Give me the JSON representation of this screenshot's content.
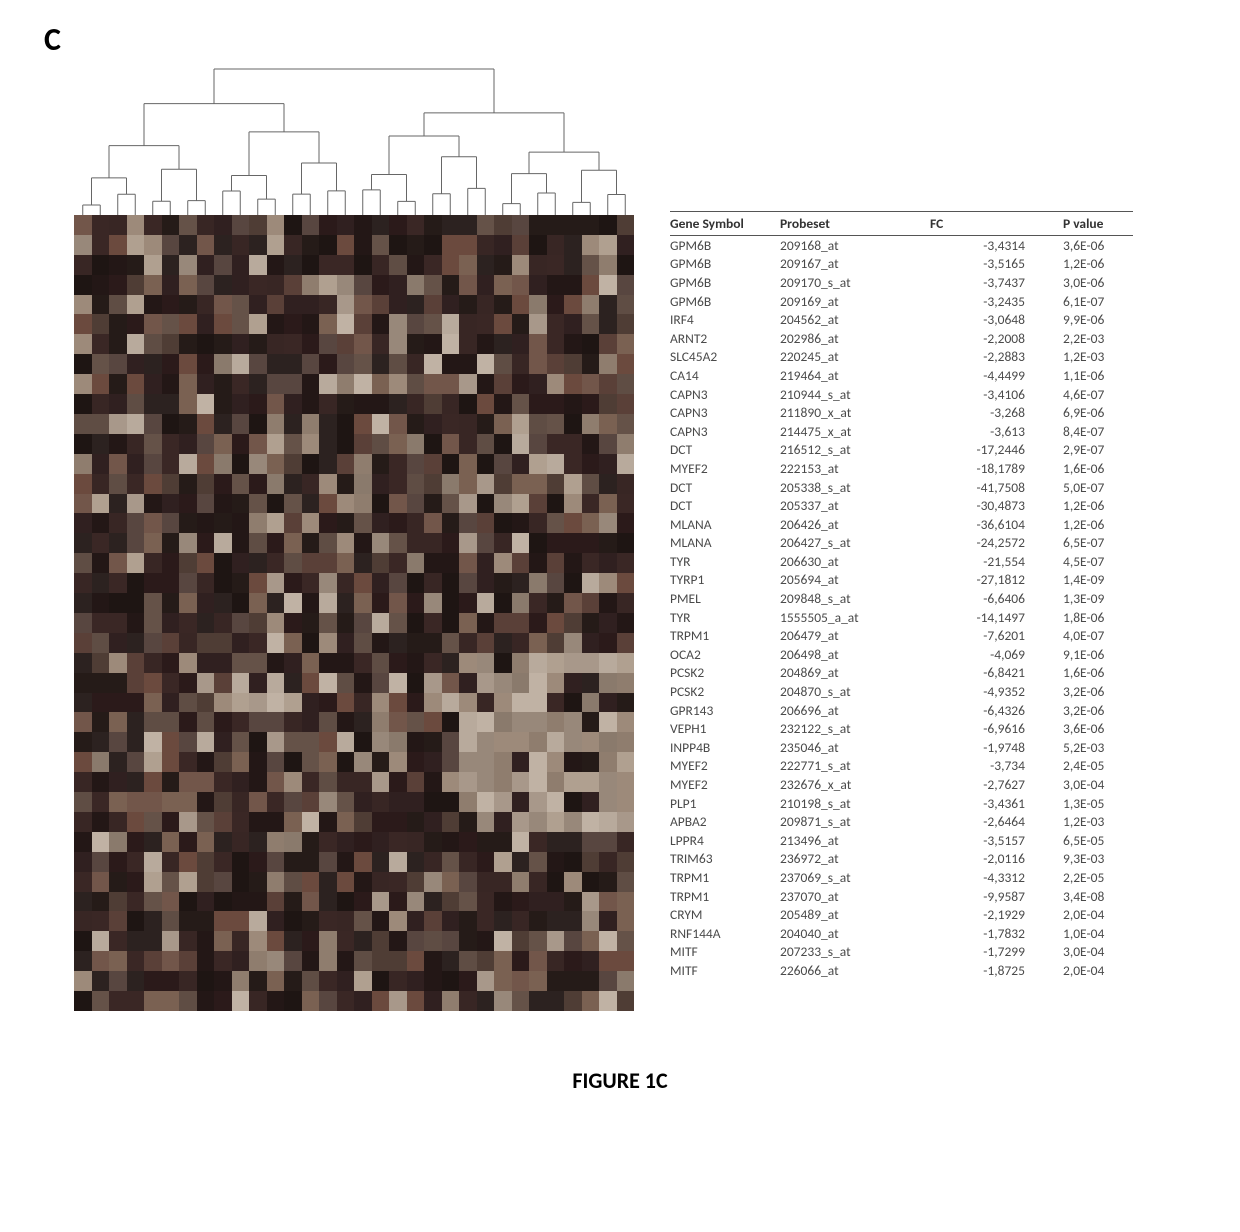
{
  "panel_label": "C",
  "caption": "FIGURE 1C",
  "dendrogram": {
    "n_leaves": 32,
    "line_color": "#666666",
    "line_width": 1
  },
  "heatmap": {
    "type": "heatmap",
    "rows": 40,
    "cols": 32,
    "cell_colors_seed": 13,
    "palette_dark": [
      "#2b1a1a",
      "#302020",
      "#251b18",
      "#1e1513",
      "#382624",
      "#2c2220",
      "#231716",
      "#3a2725"
    ],
    "palette_mid": [
      "#5a4038",
      "#6b4a3e",
      "#5f4d44",
      "#72564a",
      "#4f3d35",
      "#655248",
      "#7a6152",
      "#584640"
    ],
    "palette_light": [
      "#9d8a7a",
      "#b0a090",
      "#8f7d6e",
      "#a8988a",
      "#c0b2a4",
      "#98887a",
      "#b8aa9c",
      "#8a7a6c"
    ],
    "row_band_light_start": 22,
    "row_band_light_end": 30,
    "col_band_light_start": 22,
    "col_band_light_end": 31
  },
  "table": {
    "headers": [
      "Gene Symbol",
      "Probeset",
      "FC",
      "P value"
    ],
    "col_classes": [
      "col-gene",
      "col-probe",
      "col-fc",
      "col-p"
    ],
    "rows": [
      [
        "GPM6B",
        "209168_at",
        "-3,4314",
        "3,6E-06"
      ],
      [
        "GPM6B",
        "209167_at",
        "-3,5165",
        "1,2E-06"
      ],
      [
        "GPM6B",
        "209170_s_at",
        "-3,7437",
        "3,0E-06"
      ],
      [
        "GPM6B",
        "209169_at",
        "-3,2435",
        "6,1E-07"
      ],
      [
        "IRF4",
        "204562_at",
        "-3,0648",
        "9,9E-06"
      ],
      [
        "ARNT2",
        "202986_at",
        "-2,2008",
        "2,2E-03"
      ],
      [
        "SLC45A2",
        "220245_at",
        "-2,2883",
        "1,2E-03"
      ],
      [
        "CA14",
        "219464_at",
        "-4,4499",
        "1,1E-06"
      ],
      [
        "CAPN3",
        "210944_s_at",
        "-3,4106",
        "4,6E-07"
      ],
      [
        "CAPN3",
        "211890_x_at",
        "-3,268",
        "6,9E-06"
      ],
      [
        "CAPN3",
        "214475_x_at",
        "-3,613",
        "8,4E-07"
      ],
      [
        "DCT",
        "216512_s_at",
        "-17,2446",
        "2,9E-07"
      ],
      [
        "MYEF2",
        "222153_at",
        "-18,1789",
        "1,6E-06"
      ],
      [
        "DCT",
        "205338_s_at",
        "-41,7508",
        "5,0E-07"
      ],
      [
        "DCT",
        "205337_at",
        "-30,4873",
        "1,2E-06"
      ],
      [
        "MLANA",
        "206426_at",
        "-36,6104",
        "1,2E-06"
      ],
      [
        "MLANA",
        "206427_s_at",
        "-24,2572",
        "6,5E-07"
      ],
      [
        "TYR",
        "206630_at",
        "-21,554",
        "4,5E-07"
      ],
      [
        "TYRP1",
        "205694_at",
        "-27,1812",
        "1,4E-09"
      ],
      [
        "PMEL",
        "209848_s_at",
        "-6,6406",
        "1,3E-09"
      ],
      [
        "TYR",
        "1555505_a_at",
        "-14,1497",
        "1,8E-06"
      ],
      [
        "TRPM1",
        "206479_at",
        "-7,6201",
        "4,0E-07"
      ],
      [
        "OCA2",
        "206498_at",
        "-4,069",
        "9,1E-06"
      ],
      [
        "PCSK2",
        "204869_at",
        "-6,8421",
        "1,6E-06"
      ],
      [
        "PCSK2",
        "204870_s_at",
        "-4,9352",
        "3,2E-06"
      ],
      [
        "GPR143",
        "206696_at",
        "-6,4326",
        "3,2E-06"
      ],
      [
        "VEPH1",
        "232122_s_at",
        "-6,9616",
        "3,6E-06"
      ],
      [
        "INPP4B",
        "235046_at",
        "-1,9748",
        "5,2E-03"
      ],
      [
        "MYEF2",
        "222771_s_at",
        "-3,734",
        "2,4E-05"
      ],
      [
        "MYEF2",
        "232676_x_at",
        "-2,7627",
        "3,0E-04"
      ],
      [
        "PLP1",
        "210198_s_at",
        "-3,4361",
        "1,3E-05"
      ],
      [
        "APBA2",
        "209871_s_at",
        "-2,6464",
        "1,2E-03"
      ],
      [
        "LPPR4",
        "213496_at",
        "-3,5157",
        "6,5E-05"
      ],
      [
        "TRIM63",
        "236972_at",
        "-2,0116",
        "9,3E-03"
      ],
      [
        "TRPM1",
        "237069_s_at",
        "-4,3312",
        "2,2E-05"
      ],
      [
        "TRPM1",
        "237070_at",
        "-9,9587",
        "3,4E-08"
      ],
      [
        "CRYM",
        "205489_at",
        "-2,1929",
        "2,0E-04"
      ],
      [
        "RNF144A",
        "204040_at",
        "-1,7832",
        "1,0E-04"
      ],
      [
        "MITF",
        "207233_s_at",
        "-1,7299",
        "3,0E-04"
      ],
      [
        "MITF",
        "226066_at",
        "-1,8725",
        "2,0E-04"
      ]
    ]
  },
  "colors": {
    "background": "#ffffff",
    "text": "#4a4a4a",
    "header_border": "#555555"
  },
  "typography": {
    "panel_label_fontsize": 32,
    "table_fontsize": 13.5,
    "caption_fontsize": 22,
    "font_family": "Calibri, Arial, sans-serif"
  }
}
